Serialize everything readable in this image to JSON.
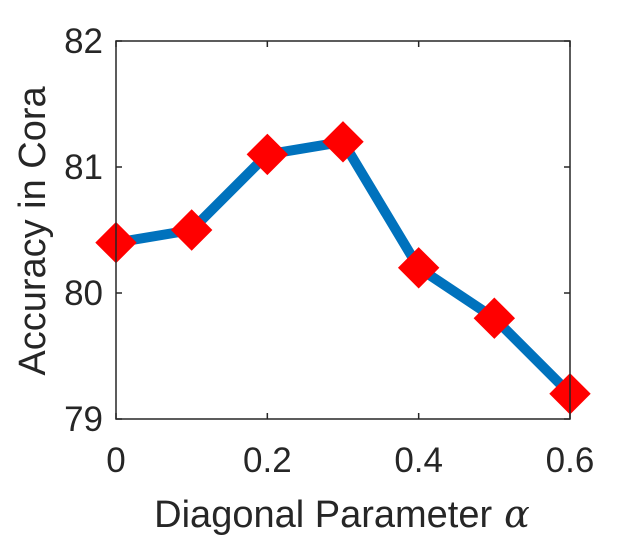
{
  "chart_data": {
    "type": "line",
    "title": "",
    "xlabel": "Diagonal Parameter",
    "xlabel_symbol": "α",
    "ylabel": "Accuracy in Cora",
    "x": [
      0,
      0.1,
      0.2,
      0.3,
      0.4,
      0.5,
      0.6
    ],
    "y": [
      80.4,
      80.5,
      81.1,
      81.2,
      80.2,
      79.8,
      79.2
    ],
    "xlim": [
      0,
      0.6
    ],
    "ylim": [
      79,
      82
    ],
    "xticks": [
      0,
      0.2,
      0.4,
      0.6
    ],
    "xtick_labels": [
      "0",
      "0.2",
      "0.4",
      "0.6"
    ],
    "yticks": [
      79,
      80,
      81,
      82
    ],
    "ytick_labels": [
      "79",
      "80",
      "81",
      "82"
    ],
    "grid": false,
    "box": true,
    "line_color": "#0072BD",
    "marker": "diamond",
    "marker_color": "#FF0000",
    "axis_color": "#262626"
  }
}
